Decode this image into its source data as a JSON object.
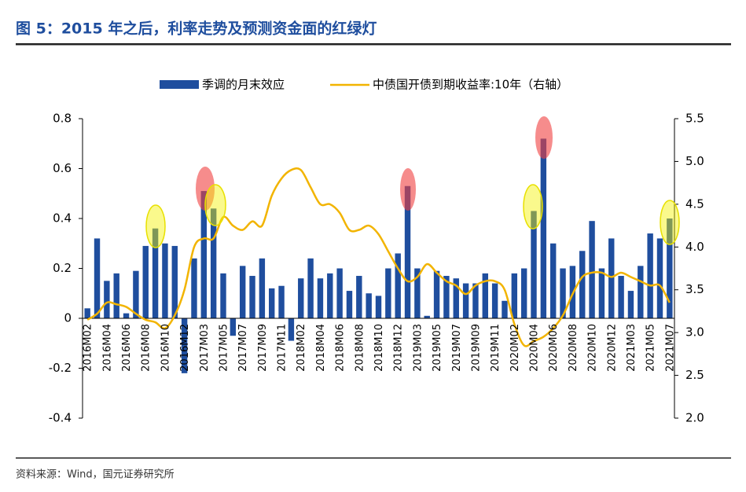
{
  "chart_data": {
    "type": "bar",
    "title": "图 5：2015 年之后，利率走势及预测资金面的红绿灯",
    "source": "资料来源：Wind，国元证券研究所",
    "categories": [
      "2016M02",
      null,
      "2016M04",
      null,
      "2016M06",
      null,
      "2016M08",
      null,
      "2016M10",
      null,
      "2016M12",
      null,
      "2017M03",
      null,
      "2017M05",
      null,
      "2017M07",
      null,
      "2017M09",
      null,
      "2017M11",
      null,
      "2018M02",
      null,
      "2018M04",
      null,
      "2018M06",
      null,
      "2018M08",
      null,
      "2018M10",
      null,
      "2018M12",
      null,
      "2019M03",
      null,
      "2019M05",
      null,
      "2019M07",
      null,
      "2019M09",
      null,
      "2019M11",
      null,
      "2020M02",
      null,
      "2020M04",
      null,
      "2020M06",
      null,
      "2020M08",
      null,
      "2020M10",
      null,
      "2020M12",
      null,
      "2021M03",
      null,
      "2021M05",
      null,
      "2021M07"
    ],
    "series": [
      {
        "name": "季调的月末效应",
        "type": "bar",
        "color": "#1f4e9e",
        "values": [
          0.04,
          0.32,
          0.15,
          0.18,
          0.02,
          0.19,
          0.29,
          0.36,
          0.3,
          0.29,
          -0.22,
          0.24,
          0.51,
          0.44,
          0.18,
          -0.07,
          0.21,
          0.17,
          0.24,
          0.12,
          0.13,
          -0.09,
          0.16,
          0.24,
          0.16,
          0.18,
          0.2,
          0.11,
          0.17,
          0.1,
          0.09,
          0.2,
          0.26,
          0.53,
          0.2,
          0.01,
          0.19,
          0.17,
          0.16,
          0.14,
          0.14,
          0.18,
          0.14,
          0.07,
          0.18,
          0.2,
          0.43,
          0.72,
          0.3,
          0.2,
          0.21,
          0.27,
          0.39,
          0.2,
          0.32,
          0.17,
          0.11,
          0.21,
          0.34,
          0.32,
          0.4
        ]
      },
      {
        "name": "中债国开债到期收益率:10年（右轴）",
        "type": "line",
        "axis": "y2",
        "color": "#f2b400",
        "values": [
          3.15,
          3.22,
          3.35,
          3.33,
          3.3,
          3.22,
          3.15,
          3.12,
          3.05,
          3.2,
          3.5,
          4.0,
          4.1,
          4.1,
          4.35,
          4.25,
          4.2,
          4.3,
          4.25,
          4.6,
          4.8,
          4.9,
          4.9,
          4.7,
          4.5,
          4.5,
          4.4,
          4.2,
          4.2,
          4.25,
          4.15,
          3.95,
          3.75,
          3.6,
          3.65,
          3.8,
          3.7,
          3.6,
          3.55,
          3.45,
          3.55,
          3.6,
          3.6,
          3.5,
          3.1,
          2.85,
          2.9,
          2.95,
          3.05,
          3.2,
          3.45,
          3.65,
          3.7,
          3.7,
          3.65,
          3.7,
          3.65,
          3.6,
          3.55,
          3.55,
          3.35
        ]
      }
    ],
    "ylim": [
      -0.4,
      0.8
    ],
    "yticks": [
      0.8,
      0.6,
      0.4,
      0.2,
      0,
      -0.2,
      -0.4
    ],
    "y2lim": [
      2.0,
      5.5
    ],
    "y2ticks": [
      5.5,
      {
        "value": 5,
        "label": "5.0"
      },
      4.5,
      {
        "value": 4,
        "label": "4.0"
      },
      3.5,
      {
        "value": 3,
        "label": "3.0"
      },
      2.5,
      {
        "value": 2,
        "label": "2.0"
      }
    ],
    "legend": "top"
  }
}
